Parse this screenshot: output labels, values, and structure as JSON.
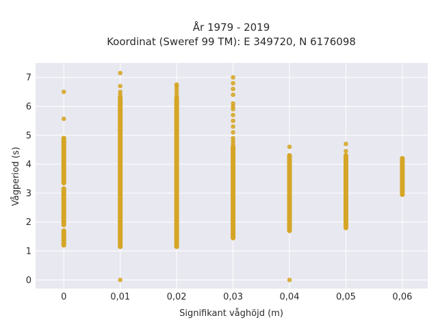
{
  "chart_data": {
    "type": "scatter",
    "title_line1": "År 1979 - 2019",
    "title_line2": "Koordinat (Sweref 99 TM): E 349720, N 6176098",
    "xlabel": "Signifikant våghöjd (m)",
    "ylabel": "Vågperiod (s)",
    "xlim": [
      -0.005,
      0.0645
    ],
    "ylim": [
      -0.3,
      7.5
    ],
    "x_ticks": [
      0,
      0.01,
      0.02,
      0.03,
      0.04,
      0.05,
      0.06
    ],
    "x_tick_labels": [
      "0",
      "0,01",
      "0,02",
      "0,03",
      "0,04",
      "0,05",
      "0,06"
    ],
    "y_ticks": [
      0,
      1,
      2,
      3,
      4,
      5,
      6,
      7
    ],
    "y_tick_labels": [
      "0",
      "1",
      "2",
      "3",
      "4",
      "5",
      "6",
      "7"
    ],
    "grid": true,
    "colors": {
      "marker": "#d4a21c",
      "plot_bg": "#e8e8f0",
      "grid": "#ffffff"
    },
    "columns": [
      {
        "x": 0,
        "ranges": [
          [
            1.2,
            1.7
          ],
          [
            1.9,
            3.15
          ],
          [
            3.35,
            4.9
          ]
        ],
        "points": [
          5.57,
          6.5
        ]
      },
      {
        "x": 0.01,
        "ranges": [
          [
            1.15,
            6.3
          ]
        ],
        "points": [
          0,
          6.4,
          6.5,
          6.7,
          7.15
        ]
      },
      {
        "x": 0.02,
        "ranges": [
          [
            1.15,
            6.3
          ]
        ],
        "points": [
          6.4,
          6.5,
          6.6,
          6.7,
          6.75
        ]
      },
      {
        "x": 0.03,
        "ranges": [
          [
            1.45,
            4.6
          ]
        ],
        "points": [
          4.7,
          4.8,
          4.9,
          5.1,
          5.3,
          5.5,
          5.7,
          5.9,
          6.0,
          6.1,
          6.4,
          6.6,
          6.8,
          7.0
        ]
      },
      {
        "x": 0.04,
        "ranges": [
          [
            1.7,
            4.3
          ]
        ],
        "points": [
          0,
          4.6
        ]
      },
      {
        "x": 0.05,
        "ranges": [
          [
            1.8,
            4.3
          ]
        ],
        "points": [
          4.45,
          4.7
        ]
      },
      {
        "x": 0.06,
        "ranges": [
          [
            2.95,
            4.2
          ]
        ],
        "points": []
      }
    ]
  }
}
